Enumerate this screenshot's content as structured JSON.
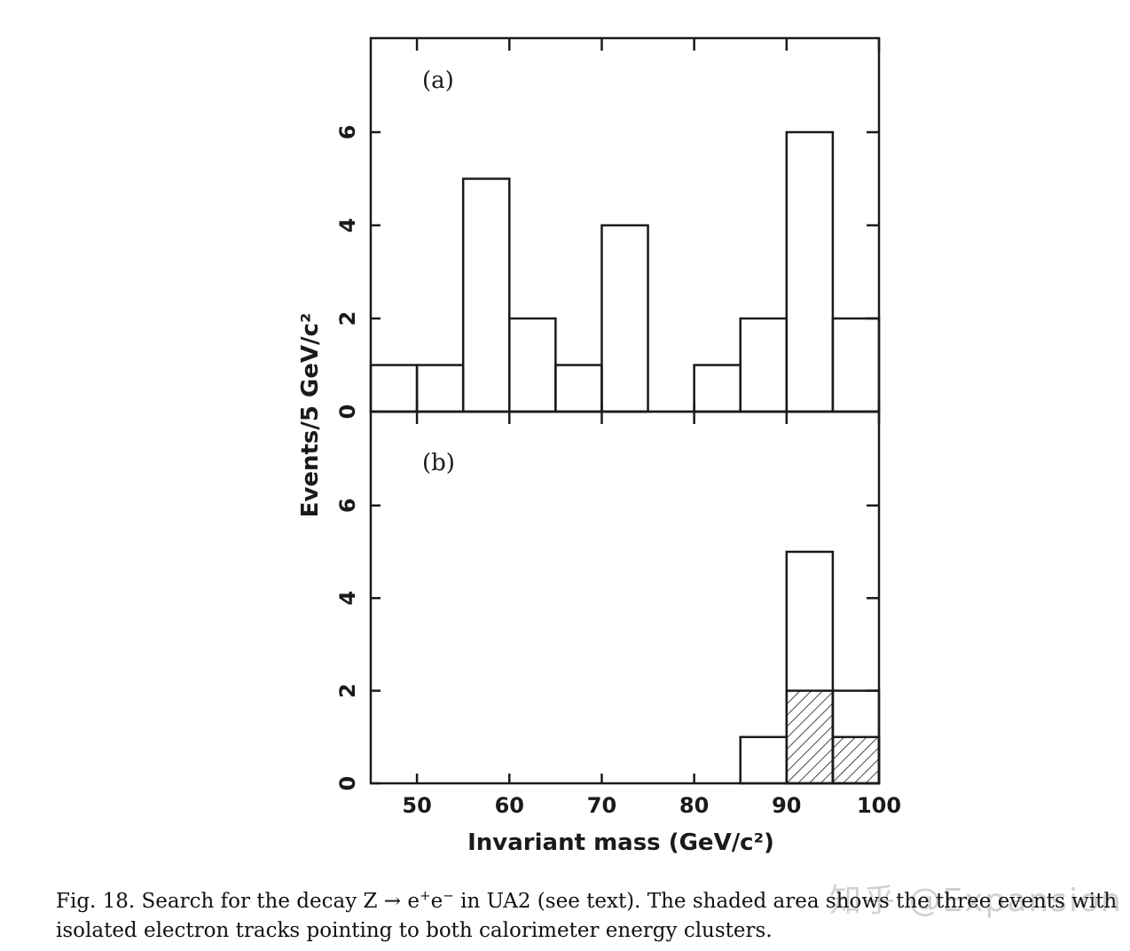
{
  "chart_data": [
    {
      "type": "bar",
      "panel_label": "(a)",
      "bin_width": 5,
      "bins": [
        {
          "lo": 45,
          "hi": 50,
          "value": 1
        },
        {
          "lo": 50,
          "hi": 55,
          "value": 1
        },
        {
          "lo": 55,
          "hi": 60,
          "value": 5
        },
        {
          "lo": 60,
          "hi": 65,
          "value": 2
        },
        {
          "lo": 65,
          "hi": 70,
          "value": 1
        },
        {
          "lo": 70,
          "hi": 75,
          "value": 4
        },
        {
          "lo": 75,
          "hi": 80,
          "value": 0
        },
        {
          "lo": 80,
          "hi": 85,
          "value": 1
        },
        {
          "lo": 85,
          "hi": 90,
          "value": 2
        },
        {
          "lo": 90,
          "hi": 95,
          "value": 6
        },
        {
          "lo": 95,
          "hi": 100,
          "value": 2
        }
      ],
      "xlim": [
        45,
        100
      ],
      "ylim": [
        0,
        8
      ],
      "yticks": [
        "0",
        "2",
        "4",
        "6"
      ]
    },
    {
      "type": "bar",
      "panel_label": "(b)",
      "bin_width": 5,
      "bins": [
        {
          "lo": 85,
          "hi": 90,
          "value": 1
        },
        {
          "lo": 90,
          "hi": 95,
          "value": 5
        },
        {
          "lo": 95,
          "hi": 100,
          "value": 2
        }
      ],
      "shaded_bins": [
        {
          "lo": 90,
          "hi": 95,
          "value": 2
        },
        {
          "lo": 95,
          "hi": 100,
          "value": 1
        }
      ],
      "xlim": [
        45,
        100
      ],
      "ylim": [
        0,
        8
      ],
      "yticks": [
        "0",
        "2",
        "4",
        "6"
      ],
      "xticks": [
        "50",
        "60",
        "70",
        "80",
        "90",
        "100"
      ]
    }
  ],
  "axes": {
    "ylabel": "Events/5 GeV/c²",
    "xlabel": "Invariant mass (GeV/c²)"
  },
  "caption": {
    "prefix": "Fig. 18.   Search for the decay Z → e",
    "sup1": "+",
    "mid": "e",
    "sup2": "−",
    "rest": " in UA2 (see text). The shaded area shows the three events with isolated electron tracks pointing to both calorimeter energy clusters."
  },
  "watermark": "知乎 @Expansion",
  "colors": {
    "ink": "#1a1a1a",
    "paper": "#ffffff"
  }
}
